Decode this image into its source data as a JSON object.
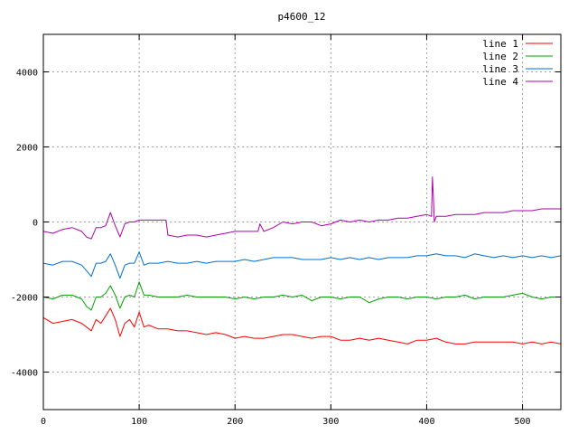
{
  "chart_data": {
    "type": "line",
    "title": "p4600_12",
    "xlabel": "",
    "ylabel": "",
    "xlim": [
      0,
      540
    ],
    "ylim": [
      -5000,
      5000
    ],
    "x_ticks": [
      0,
      100,
      200,
      300,
      400,
      500
    ],
    "y_ticks": [
      -4000,
      -2000,
      0,
      2000,
      4000
    ],
    "grid": true,
    "legend_position": "top-right",
    "series": [
      {
        "name": "line 1",
        "color": "#ff0000",
        "x": [
          0,
          10,
          20,
          30,
          40,
          45,
          50,
          55,
          60,
          65,
          70,
          75,
          80,
          85,
          90,
          95,
          100,
          105,
          110,
          120,
          130,
          140,
          150,
          160,
          170,
          180,
          190,
          200,
          210,
          220,
          230,
          240,
          250,
          260,
          270,
          280,
          290,
          300,
          310,
          320,
          330,
          340,
          350,
          360,
          370,
          380,
          390,
          400,
          410,
          420,
          430,
          440,
          450,
          460,
          470,
          480,
          490,
          500,
          510,
          520,
          530,
          540
        ],
        "y": [
          -2550,
          -2700,
          -2650,
          -2600,
          -2700,
          -2800,
          -2900,
          -2600,
          -2700,
          -2500,
          -2300,
          -2600,
          -3050,
          -2700,
          -2600,
          -2800,
          -2400,
          -2800,
          -2750,
          -2850,
          -2850,
          -2900,
          -2900,
          -2950,
          -3000,
          -2950,
          -3000,
          -3100,
          -3050,
          -3100,
          -3100,
          -3050,
          -3000,
          -3000,
          -3050,
          -3100,
          -3050,
          -3050,
          -3150,
          -3150,
          -3100,
          -3150,
          -3100,
          -3150,
          -3200,
          -3250,
          -3150,
          -3150,
          -3100,
          -3200,
          -3250,
          -3250,
          -3200,
          -3200,
          -3200,
          -3200,
          -3200,
          -3250,
          -3200,
          -3250,
          -3200,
          -3250
        ]
      },
      {
        "name": "line 2",
        "color": "#00a000",
        "x": [
          0,
          10,
          20,
          30,
          40,
          45,
          50,
          55,
          60,
          65,
          70,
          75,
          80,
          85,
          90,
          95,
          100,
          105,
          110,
          120,
          130,
          140,
          150,
          160,
          170,
          180,
          190,
          200,
          210,
          220,
          230,
          240,
          250,
          260,
          270,
          280,
          290,
          300,
          310,
          320,
          330,
          340,
          350,
          360,
          370,
          380,
          390,
          400,
          410,
          420,
          430,
          440,
          450,
          460,
          470,
          480,
          490,
          500,
          510,
          520,
          530,
          540
        ],
        "y": [
          -2000,
          -2050,
          -1950,
          -1950,
          -2050,
          -2250,
          -2350,
          -2000,
          -2000,
          -1900,
          -1700,
          -1950,
          -2300,
          -2000,
          -1950,
          -2000,
          -1600,
          -1950,
          -1950,
          -2000,
          -2000,
          -2000,
          -1950,
          -2000,
          -2000,
          -2000,
          -2000,
          -2050,
          -2000,
          -2050,
          -2000,
          -2000,
          -1950,
          -2000,
          -1950,
          -2100,
          -2000,
          -2000,
          -2050,
          -2000,
          -2000,
          -2150,
          -2050,
          -2000,
          -2000,
          -2050,
          -2000,
          -2000,
          -2050,
          -2000,
          -2000,
          -1950,
          -2050,
          -2000,
          -2000,
          -2000,
          -1950,
          -1900,
          -2000,
          -2050,
          -2000,
          -2000
        ]
      },
      {
        "name": "line 3",
        "color": "#0070d0",
        "x": [
          0,
          10,
          20,
          30,
          40,
          45,
          50,
          55,
          60,
          65,
          70,
          75,
          80,
          85,
          90,
          95,
          100,
          105,
          110,
          120,
          130,
          140,
          150,
          160,
          170,
          180,
          190,
          200,
          210,
          220,
          230,
          240,
          250,
          260,
          270,
          280,
          290,
          300,
          310,
          320,
          330,
          340,
          350,
          360,
          370,
          380,
          390,
          400,
          410,
          420,
          430,
          440,
          450,
          460,
          470,
          480,
          490,
          500,
          510,
          520,
          530,
          540
        ],
        "y": [
          -1100,
          -1150,
          -1050,
          -1050,
          -1150,
          -1300,
          -1450,
          -1100,
          -1100,
          -1050,
          -850,
          -1150,
          -1500,
          -1150,
          -1100,
          -1100,
          -800,
          -1150,
          -1100,
          -1100,
          -1050,
          -1100,
          -1100,
          -1050,
          -1100,
          -1050,
          -1050,
          -1050,
          -1000,
          -1050,
          -1000,
          -950,
          -950,
          -950,
          -1000,
          -1000,
          -1000,
          -950,
          -1000,
          -950,
          -1000,
          -950,
          -1000,
          -950,
          -950,
          -950,
          -900,
          -900,
          -850,
          -900,
          -900,
          -950,
          -850,
          -900,
          -950,
          -900,
          -950,
          -900,
          -950,
          -900,
          -950,
          -900
        ]
      },
      {
        "name": "line 4",
        "color": "#b000b0",
        "x": [
          0,
          10,
          20,
          30,
          40,
          45,
          50,
          55,
          60,
          65,
          70,
          75,
          80,
          85,
          90,
          95,
          100,
          105,
          110,
          120,
          128,
          130,
          140,
          150,
          160,
          170,
          180,
          190,
          200,
          210,
          220,
          224,
          226,
          230,
          240,
          250,
          260,
          270,
          280,
          290,
          300,
          310,
          320,
          330,
          340,
          350,
          360,
          370,
          380,
          390,
          400,
          405,
          406,
          407,
          408,
          410,
          420,
          430,
          440,
          450,
          460,
          470,
          480,
          490,
          500,
          510,
          520,
          530,
          540
        ],
        "y": [
          -250,
          -300,
          -200,
          -150,
          -250,
          -400,
          -450,
          -150,
          -150,
          -100,
          250,
          -100,
          -400,
          -50,
          0,
          0,
          50,
          50,
          50,
          50,
          50,
          -350,
          -400,
          -350,
          -350,
          -400,
          -350,
          -300,
          -250,
          -250,
          -250,
          -250,
          -50,
          -250,
          -150,
          0,
          -50,
          0,
          0,
          -100,
          -50,
          50,
          0,
          50,
          0,
          50,
          50,
          100,
          100,
          150,
          200,
          150,
          1200,
          650,
          0,
          150,
          150,
          200,
          200,
          200,
          250,
          250,
          250,
          300,
          300,
          300,
          350,
          350,
          350
        ]
      }
    ]
  }
}
